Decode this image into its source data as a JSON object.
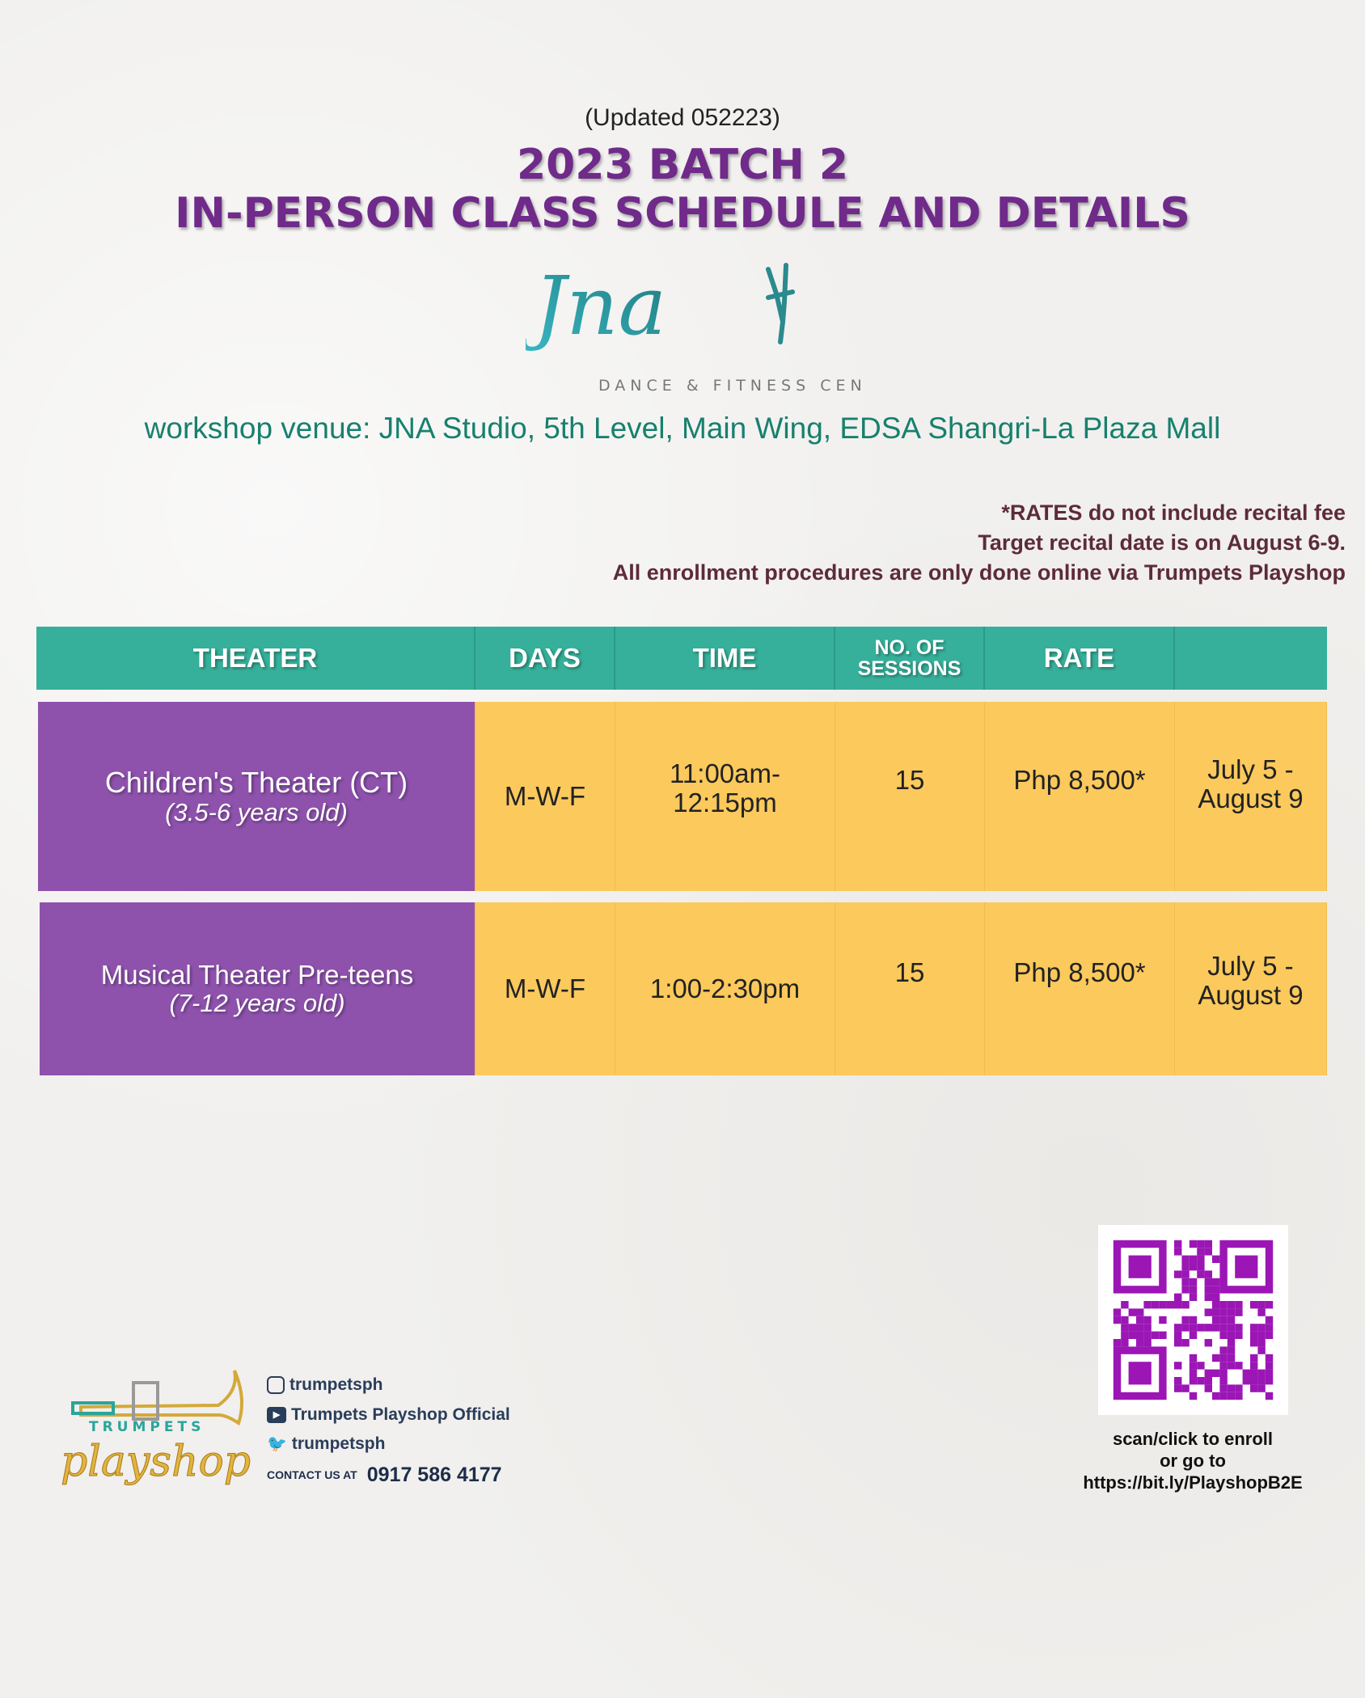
{
  "updated": "(Updated 052223)",
  "title_line1": "2023 BATCH 2",
  "title_line2": "IN-PERSON CLASS SCHEDULE AND DETAILS",
  "logo": {
    "script": "Jna",
    "tagline": "DANCE & FITNESS CENTER"
  },
  "venue": "workshop venue: JNA Studio, 5th Level, Main Wing, EDSA Shangri-La Plaza Mall",
  "notes": [
    "*RATES do not include recital fee",
    "Target recital date is on August 6-9.",
    "All enrollment procedures are only done online via Trumpets Playshop"
  ],
  "table": {
    "headers": [
      "THEATER",
      "DAYS",
      "TIME",
      "NO. OF SESSIONS",
      "RATE",
      ""
    ],
    "rows": [
      {
        "name": "Children's Theater (CT)",
        "age": "(3.5-6 years old)",
        "days": "M-W-F",
        "time": "11:00am-\n12:15pm",
        "sessions": "15",
        "rate": "Php 8,500*",
        "dates": "July 5 -\nAugust 9"
      },
      {
        "name": "Musical Theater Pre-teens",
        "age": "(7-12 years old)",
        "days": "M-W-F",
        "time": "1:00-2:30pm",
        "sessions": "15",
        "rate": "Php 8,500*",
        "dates": "July 5 -\nAugust 9"
      }
    ]
  },
  "footer": {
    "logo_text": {
      "brand": "TRUMPETS",
      "script": "playshop"
    },
    "instagram": "trumpetsph",
    "youtube": "Trumpets Playshop Official",
    "twitter": "trumpetsph",
    "contact_label": "CONTACT US AT",
    "phone": "0917 586 4177",
    "qr_lines": [
      "scan/click to enroll",
      "or go to",
      "https://bit.ly/PlayshopB2E"
    ]
  },
  "colors": {
    "header": "#36b09a",
    "theater_cell": "#8e52ad",
    "detail_cell": "#fbc95c",
    "title": "#6f2a8a",
    "qr": "#9b16b5"
  }
}
